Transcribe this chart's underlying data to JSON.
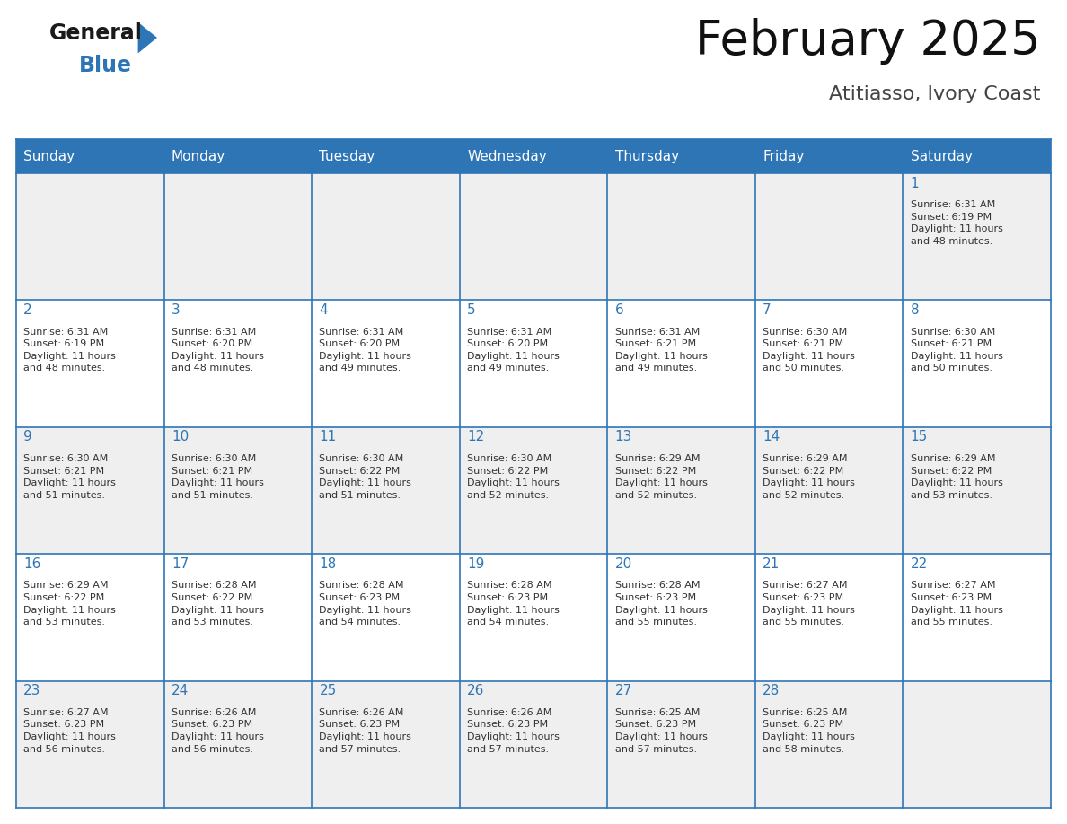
{
  "title": "February 2025",
  "subtitle": "Atitiasso, Ivory Coast",
  "header_color": "#2E75B6",
  "header_text_color": "#FFFFFF",
  "cell_bg_even": "#EFEFEF",
  "cell_bg_odd": "#FFFFFF",
  "day_number_color": "#2E75B6",
  "info_text_color": "#333333",
  "border_color": "#2E75B6",
  "line_color": "#2E75B6",
  "days_of_week": [
    "Sunday",
    "Monday",
    "Tuesday",
    "Wednesday",
    "Thursday",
    "Friday",
    "Saturday"
  ],
  "weeks": [
    [
      {
        "day": 0,
        "info": ""
      },
      {
        "day": 0,
        "info": ""
      },
      {
        "day": 0,
        "info": ""
      },
      {
        "day": 0,
        "info": ""
      },
      {
        "day": 0,
        "info": ""
      },
      {
        "day": 0,
        "info": ""
      },
      {
        "day": 1,
        "info": "Sunrise: 6:31 AM\nSunset: 6:19 PM\nDaylight: 11 hours\nand 48 minutes."
      }
    ],
    [
      {
        "day": 2,
        "info": "Sunrise: 6:31 AM\nSunset: 6:19 PM\nDaylight: 11 hours\nand 48 minutes."
      },
      {
        "day": 3,
        "info": "Sunrise: 6:31 AM\nSunset: 6:20 PM\nDaylight: 11 hours\nand 48 minutes."
      },
      {
        "day": 4,
        "info": "Sunrise: 6:31 AM\nSunset: 6:20 PM\nDaylight: 11 hours\nand 49 minutes."
      },
      {
        "day": 5,
        "info": "Sunrise: 6:31 AM\nSunset: 6:20 PM\nDaylight: 11 hours\nand 49 minutes."
      },
      {
        "day": 6,
        "info": "Sunrise: 6:31 AM\nSunset: 6:21 PM\nDaylight: 11 hours\nand 49 minutes."
      },
      {
        "day": 7,
        "info": "Sunrise: 6:30 AM\nSunset: 6:21 PM\nDaylight: 11 hours\nand 50 minutes."
      },
      {
        "day": 8,
        "info": "Sunrise: 6:30 AM\nSunset: 6:21 PM\nDaylight: 11 hours\nand 50 minutes."
      }
    ],
    [
      {
        "day": 9,
        "info": "Sunrise: 6:30 AM\nSunset: 6:21 PM\nDaylight: 11 hours\nand 51 minutes."
      },
      {
        "day": 10,
        "info": "Sunrise: 6:30 AM\nSunset: 6:21 PM\nDaylight: 11 hours\nand 51 minutes."
      },
      {
        "day": 11,
        "info": "Sunrise: 6:30 AM\nSunset: 6:22 PM\nDaylight: 11 hours\nand 51 minutes."
      },
      {
        "day": 12,
        "info": "Sunrise: 6:30 AM\nSunset: 6:22 PM\nDaylight: 11 hours\nand 52 minutes."
      },
      {
        "day": 13,
        "info": "Sunrise: 6:29 AM\nSunset: 6:22 PM\nDaylight: 11 hours\nand 52 minutes."
      },
      {
        "day": 14,
        "info": "Sunrise: 6:29 AM\nSunset: 6:22 PM\nDaylight: 11 hours\nand 52 minutes."
      },
      {
        "day": 15,
        "info": "Sunrise: 6:29 AM\nSunset: 6:22 PM\nDaylight: 11 hours\nand 53 minutes."
      }
    ],
    [
      {
        "day": 16,
        "info": "Sunrise: 6:29 AM\nSunset: 6:22 PM\nDaylight: 11 hours\nand 53 minutes."
      },
      {
        "day": 17,
        "info": "Sunrise: 6:28 AM\nSunset: 6:22 PM\nDaylight: 11 hours\nand 53 minutes."
      },
      {
        "day": 18,
        "info": "Sunrise: 6:28 AM\nSunset: 6:23 PM\nDaylight: 11 hours\nand 54 minutes."
      },
      {
        "day": 19,
        "info": "Sunrise: 6:28 AM\nSunset: 6:23 PM\nDaylight: 11 hours\nand 54 minutes."
      },
      {
        "day": 20,
        "info": "Sunrise: 6:28 AM\nSunset: 6:23 PM\nDaylight: 11 hours\nand 55 minutes."
      },
      {
        "day": 21,
        "info": "Sunrise: 6:27 AM\nSunset: 6:23 PM\nDaylight: 11 hours\nand 55 minutes."
      },
      {
        "day": 22,
        "info": "Sunrise: 6:27 AM\nSunset: 6:23 PM\nDaylight: 11 hours\nand 55 minutes."
      }
    ],
    [
      {
        "day": 23,
        "info": "Sunrise: 6:27 AM\nSunset: 6:23 PM\nDaylight: 11 hours\nand 56 minutes."
      },
      {
        "day": 24,
        "info": "Sunrise: 6:26 AM\nSunset: 6:23 PM\nDaylight: 11 hours\nand 56 minutes."
      },
      {
        "day": 25,
        "info": "Sunrise: 6:26 AM\nSunset: 6:23 PM\nDaylight: 11 hours\nand 57 minutes."
      },
      {
        "day": 26,
        "info": "Sunrise: 6:26 AM\nSunset: 6:23 PM\nDaylight: 11 hours\nand 57 minutes."
      },
      {
        "day": 27,
        "info": "Sunrise: 6:25 AM\nSunset: 6:23 PM\nDaylight: 11 hours\nand 57 minutes."
      },
      {
        "day": 28,
        "info": "Sunrise: 6:25 AM\nSunset: 6:23 PM\nDaylight: 11 hours\nand 58 minutes."
      },
      {
        "day": 0,
        "info": ""
      }
    ]
  ],
  "logo_general_color": "#1a1a1a",
  "logo_blue_color": "#2E75B6",
  "logo_triangle_color": "#2E75B6",
  "title_fontsize": 38,
  "subtitle_fontsize": 16,
  "header_fontsize": 11,
  "day_num_fontsize": 11,
  "info_fontsize": 8
}
